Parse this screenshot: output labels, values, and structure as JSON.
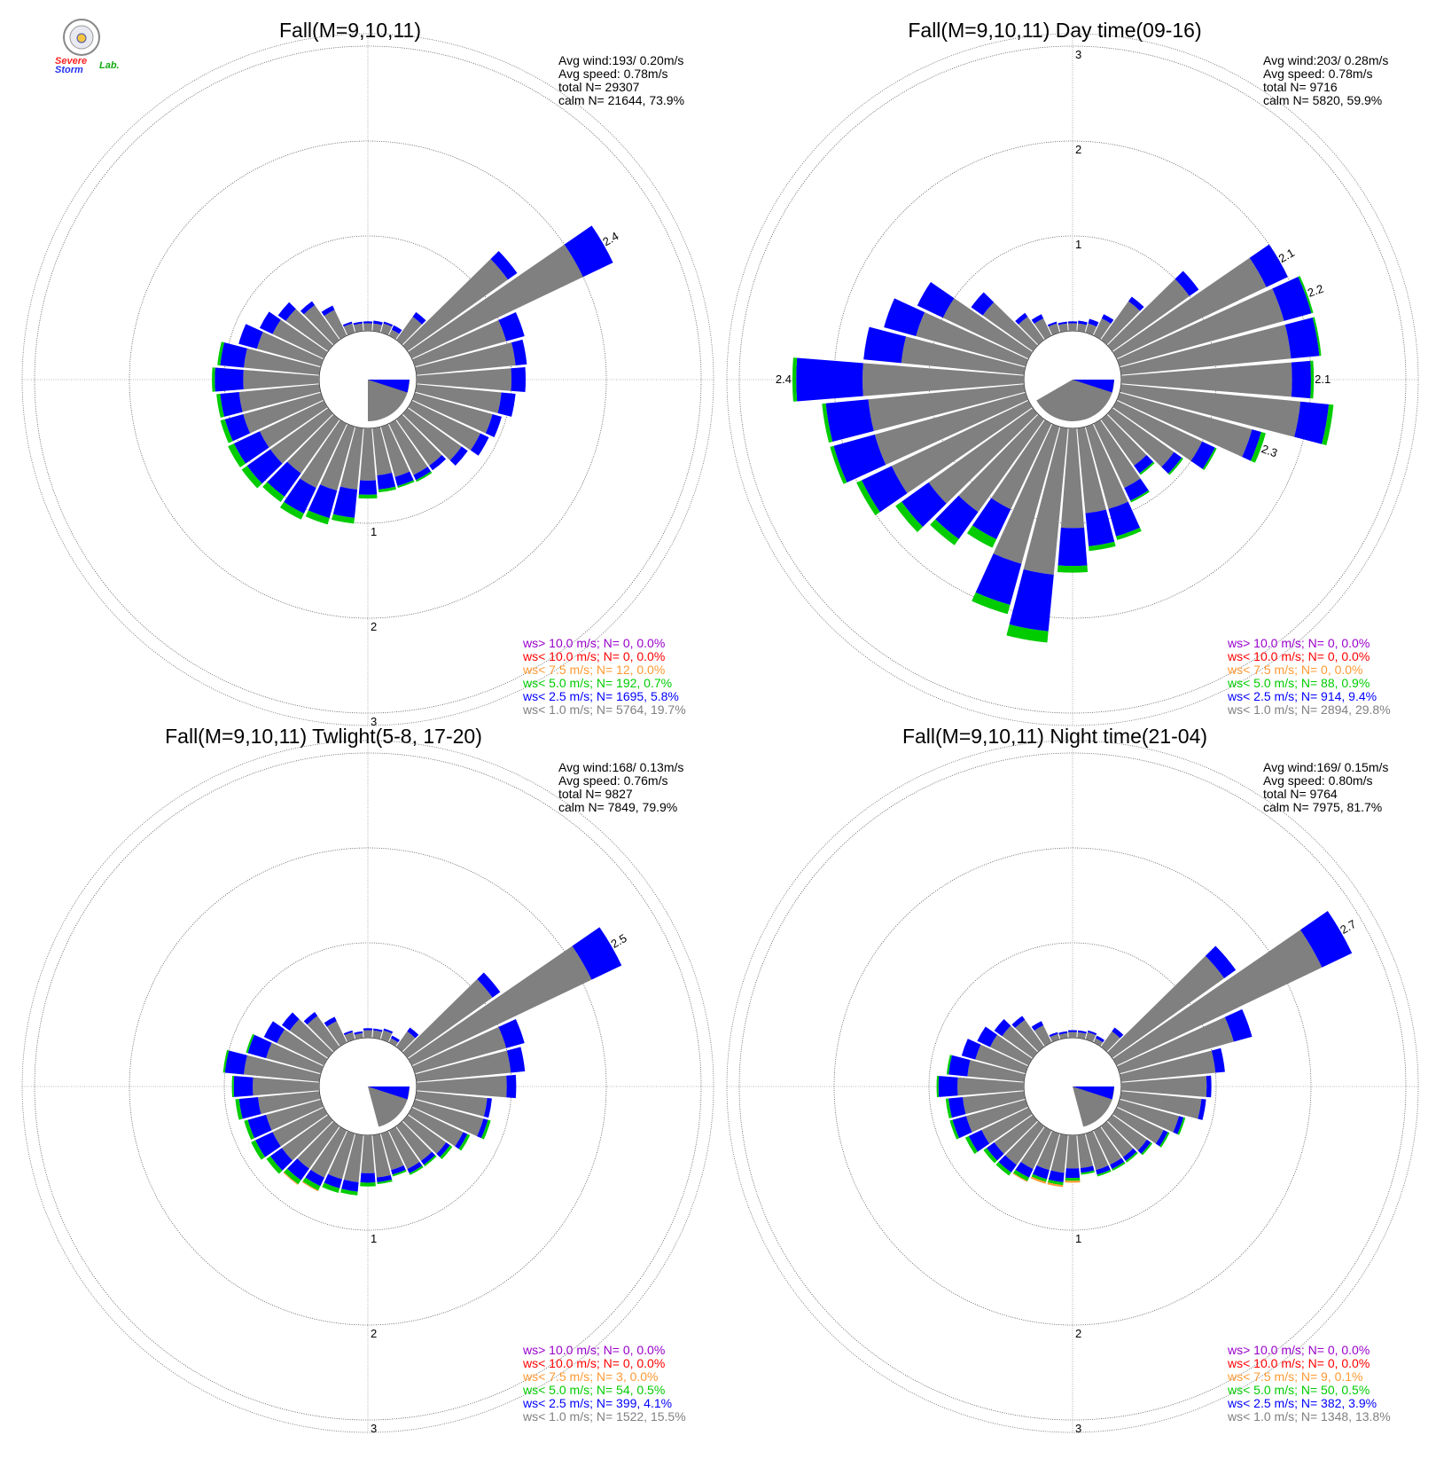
{
  "logo": {
    "text_severe": "Severe",
    "text_storm": "Storm",
    "text_lab": "Lab."
  },
  "colors": {
    "ws_gt_10": "#9900cc",
    "ws_lt_10": "#ff0000",
    "ws_lt_7_5": "#ff9933",
    "ws_lt_5": "#00cc00",
    "ws_lt_2_5": "#0000ff",
    "ws_lt_1": "#808080"
  },
  "chart_data": [
    {
      "type": "windrose",
      "title": "Fall(M=9,10,11)",
      "stats": {
        "avg_wind": "Avg wind:193/ 0.20m/s",
        "avg_speed": "Avg speed: 0.78m/s",
        "total": "total N=      29307",
        "calm": "calm N=  21644,  73.9%"
      },
      "rings": [
        1,
        2,
        3
      ],
      "ring_labels": [
        "1",
        "2",
        "3"
      ],
      "calm_pct": 73.9,
      "sectors_deg": [
        0,
        10,
        20,
        30,
        40,
        50,
        60,
        70,
        80,
        90,
        100,
        110,
        120,
        130,
        140,
        150,
        160,
        170,
        180,
        190,
        200,
        210,
        220,
        230,
        240,
        250,
        260,
        270,
        280,
        290,
        300,
        310,
        320,
        330,
        340,
        350
      ],
      "gray": [
        0.08,
        0.08,
        0.1,
        0.07,
        0.3,
        1.3,
        2.0,
        1.0,
        1.05,
        1.0,
        0.9,
        0.85,
        0.8,
        0.7,
        0.6,
        0.6,
        0.55,
        0.5,
        0.55,
        0.65,
        0.7,
        0.75,
        0.7,
        0.75,
        0.75,
        0.85,
        0.85,
        0.8,
        0.8,
        0.7,
        0.6,
        0.55,
        0.45,
        0.3,
        0.1,
        0.08
      ],
      "blue": [
        0.02,
        0.03,
        0.02,
        0.05,
        0.06,
        0.12,
        0.35,
        0.2,
        0.12,
        0.15,
        0.15,
        0.1,
        0.1,
        0.08,
        0.06,
        0.06,
        0.1,
        0.15,
        0.15,
        0.3,
        0.3,
        0.3,
        0.3,
        0.3,
        0.3,
        0.2,
        0.2,
        0.3,
        0.25,
        0.2,
        0.15,
        0.1,
        0.05,
        0.05,
        0.02,
        0.02
      ],
      "green": [
        0,
        0,
        0,
        0,
        0,
        0,
        0,
        0,
        0,
        0,
        0,
        0,
        0,
        0,
        0,
        0.02,
        0.02,
        0.03,
        0.04,
        0.06,
        0.07,
        0.07,
        0.07,
        0.07,
        0.07,
        0.05,
        0.04,
        0.03,
        0.03,
        0,
        0,
        0,
        0,
        0,
        0,
        0
      ],
      "orange": [
        0,
        0,
        0,
        0,
        0,
        0,
        0,
        0,
        0,
        0,
        0,
        0,
        0,
        0,
        0,
        0,
        0,
        0,
        0,
        0,
        0,
        0,
        0,
        0,
        0,
        0,
        0,
        0,
        0,
        0,
        0,
        0,
        0,
        0,
        0,
        0
      ],
      "calm_wedge": {
        "from_deg": 90,
        "to_deg": 180
      },
      "max_label": {
        "text": "2.4",
        "sector_deg": 60
      },
      "extra_labels": [],
      "legend": [
        {
          "text": "ws> 10.0 m/s; N=     0,  0.0%",
          "color": "ws_gt_10"
        },
        {
          "text": "ws< 10.0 m/s; N=     0,  0.0%",
          "color": "ws_lt_10"
        },
        {
          "text": "ws<  7.5 m/s; N=    12,  0.0%",
          "color": "ws_lt_7_5"
        },
        {
          "text": "ws<  5.0 m/s; N=   192,  0.7%",
          "color": "ws_lt_5"
        },
        {
          "text": "ws<  2.5 m/s; N=  1695,  5.8%",
          "color": "ws_lt_2_5"
        },
        {
          "text": "ws<  1.0 m/s; N=  5764, 19.7%",
          "color": "ws_lt_1"
        }
      ]
    },
    {
      "type": "windrose",
      "title": "Fall(M=9,10,11) Day time(09-16)",
      "stats": {
        "avg_wind": "Avg wind:203/ 0.28m/s",
        "avg_speed": "Avg speed: 0.78m/s",
        "total": "total N=        9716",
        "calm": "calm N=   5820,  59.9%"
      },
      "rings": [
        1,
        2,
        3
      ],
      "ring_labels": [
        "1",
        "2",
        "3"
      ],
      "calm_pct": 59.9,
      "sectors_deg": [
        0,
        10,
        20,
        30,
        40,
        50,
        60,
        70,
        80,
        90,
        100,
        110,
        120,
        130,
        140,
        150,
        160,
        170,
        180,
        190,
        200,
        210,
        220,
        230,
        240,
        250,
        260,
        270,
        280,
        290,
        300,
        310,
        320,
        330,
        340,
        350
      ],
      "gray": [
        0.08,
        0.08,
        0.1,
        0.2,
        0.5,
        1.0,
        1.75,
        1.8,
        1.8,
        1.8,
        1.9,
        1.45,
        1.0,
        0.8,
        0.6,
        0.75,
        0.9,
        0.9,
        1.05,
        1.55,
        1.5,
        1.0,
        1.2,
        1.35,
        1.6,
        1.65,
        1.65,
        1.7,
        1.3,
        1.2,
        1.0,
        0.65,
        0.3,
        0.2,
        0.1,
        0.08
      ],
      "blue": [
        0.02,
        0.03,
        0.05,
        0.05,
        0.06,
        0.12,
        0.25,
        0.3,
        0.3,
        0.2,
        0.3,
        0.1,
        0.15,
        0.1,
        0.1,
        0.15,
        0.3,
        0.35,
        0.4,
        0.6,
        0.45,
        0.35,
        0.35,
        0.35,
        0.35,
        0.45,
        0.45,
        0.7,
        0.4,
        0.35,
        0.3,
        0.15,
        0.05,
        0.05,
        0.02,
        0.02
      ],
      "green": [
        0,
        0,
        0,
        0,
        0,
        0,
        0,
        0.02,
        0.02,
        0.03,
        0.05,
        0.05,
        0.02,
        0.02,
        0.02,
        0.02,
        0.04,
        0.05,
        0.07,
        0.12,
        0.1,
        0.1,
        0.08,
        0.08,
        0.06,
        0.04,
        0.04,
        0.04,
        0,
        0,
        0,
        0,
        0,
        0,
        0,
        0
      ],
      "orange": [
        0,
        0,
        0,
        0,
        0,
        0,
        0,
        0,
        0,
        0,
        0,
        0,
        0,
        0,
        0,
        0,
        0,
        0,
        0,
        0,
        0,
        0,
        0,
        0,
        0,
        0,
        0,
        0,
        0,
        0,
        0,
        0,
        0,
        0,
        0,
        0
      ],
      "calm_wedge": {
        "from_deg": 90,
        "to_deg": 240
      },
      "max_label": {
        "text": "2.4",
        "sector_deg": 270
      },
      "extra_labels": [
        {
          "text": "2.1",
          "sector_deg": 60
        },
        {
          "text": "2.2",
          "sector_deg": 70
        },
        {
          "text": "2.1",
          "sector_deg": 90
        },
        {
          "text": "2.3",
          "sector_deg": 110
        }
      ],
      "legend": [
        {
          "text": "ws> 10.0 m/s; N=     0,  0.0%",
          "color": "ws_gt_10"
        },
        {
          "text": "ws< 10.0 m/s; N=     0,  0.0%",
          "color": "ws_lt_10"
        },
        {
          "text": "ws<  7.5 m/s; N=     0,  0.0%",
          "color": "ws_lt_7_5"
        },
        {
          "text": "ws<  5.0 m/s; N=    88,  0.9%",
          "color": "ws_lt_5"
        },
        {
          "text": "ws<  2.5 m/s; N=   914,  9.4%",
          "color": "ws_lt_2_5"
        },
        {
          "text": "ws<  1.0 m/s; N=  2894, 29.8%",
          "color": "ws_lt_1"
        }
      ]
    },
    {
      "type": "windrose",
      "title": "Fall(M=9,10,11) Twlight(5-8, 17-20)",
      "stats": {
        "avg_wind": "Avg wind:168/ 0.13m/s",
        "avg_speed": "Avg speed: 0.76m/s",
        "total": "total N=        9827",
        "calm": "calm N=   7849,  79.9%"
      },
      "rings": [
        1,
        2,
        3
      ],
      "ring_labels": [
        "1",
        "2",
        "3"
      ],
      "calm_pct": 79.9,
      "sectors_deg": [
        0,
        10,
        20,
        30,
        40,
        50,
        60,
        70,
        80,
        90,
        100,
        110,
        120,
        130,
        140,
        150,
        160,
        170,
        180,
        190,
        200,
        210,
        220,
        230,
        240,
        250,
        260,
        270,
        280,
        290,
        300,
        310,
        320,
        330,
        340,
        350
      ],
      "gray": [
        0.08,
        0.08,
        0.1,
        0.05,
        0.2,
        1.1,
        2.1,
        1.0,
        1.0,
        0.95,
        0.75,
        0.75,
        0.6,
        0.5,
        0.45,
        0.45,
        0.4,
        0.45,
        0.4,
        0.5,
        0.5,
        0.55,
        0.55,
        0.6,
        0.6,
        0.6,
        0.65,
        0.7,
        0.8,
        0.6,
        0.55,
        0.5,
        0.4,
        0.25,
        0.08,
        0.05
      ],
      "blue": [
        0.02,
        0.02,
        0.02,
        0.03,
        0.05,
        0.1,
        0.35,
        0.2,
        0.15,
        0.1,
        0.05,
        0.05,
        0.05,
        0.05,
        0.05,
        0.05,
        0.05,
        0.05,
        0.1,
        0.1,
        0.1,
        0.1,
        0.15,
        0.15,
        0.2,
        0.2,
        0.2,
        0.2,
        0.2,
        0.2,
        0.15,
        0.1,
        0.05,
        0.05,
        0.02,
        0.02
      ],
      "green": [
        0,
        0,
        0,
        0,
        0,
        0,
        0,
        0,
        0,
        0,
        0,
        0.03,
        0.03,
        0.03,
        0.02,
        0.02,
        0.02,
        0.02,
        0.04,
        0.04,
        0.05,
        0.05,
        0.05,
        0.05,
        0.05,
        0.04,
        0.04,
        0.02,
        0.02,
        0.02,
        0,
        0,
        0,
        0,
        0,
        0
      ],
      "orange": [
        0,
        0,
        0,
        0,
        0,
        0,
        0,
        0,
        0,
        0,
        0,
        0,
        0,
        0,
        0,
        0,
        0,
        0,
        0,
        0,
        0,
        0.01,
        0.01,
        0,
        0,
        0,
        0,
        0,
        0,
        0,
        0,
        0,
        0,
        0,
        0,
        0
      ],
      "calm_wedge": {
        "from_deg": 90,
        "to_deg": 165
      },
      "max_label": {
        "text": "2.5",
        "sector_deg": 60
      },
      "extra_labels": [],
      "legend": [
        {
          "text": "ws> 10.0 m/s; N=     0,  0.0%",
          "color": "ws_gt_10"
        },
        {
          "text": "ws< 10.0 m/s; N=     0,  0.0%",
          "color": "ws_lt_10"
        },
        {
          "text": "ws<  7.5 m/s; N=     3,  0.0%",
          "color": "ws_lt_7_5"
        },
        {
          "text": "ws<  5.0 m/s; N=    54,  0.5%",
          "color": "ws_lt_5"
        },
        {
          "text": "ws<  2.5 m/s; N=   399,  4.1%",
          "color": "ws_lt_2_5"
        },
        {
          "text": "ws<  1.0 m/s; N=  1522, 15.5%",
          "color": "ws_lt_1"
        }
      ]
    },
    {
      "type": "windrose",
      "title": "Fall(M=9,10,11) Night time(21-04)",
      "stats": {
        "avg_wind": "Avg wind:169/ 0.15m/s",
        "avg_speed": "Avg speed: 0.80m/s",
        "total": "total N=        9764",
        "calm": "calm N=   7975,  81.7%"
      },
      "rings": [
        1,
        2,
        3
      ],
      "ring_labels": [
        "1",
        "2",
        "3"
      ],
      "calm_pct": 81.7,
      "sectors_deg": [
        0,
        10,
        20,
        30,
        40,
        50,
        60,
        70,
        80,
        90,
        100,
        110,
        120,
        130,
        140,
        150,
        160,
        170,
        180,
        190,
        200,
        210,
        220,
        230,
        240,
        250,
        260,
        270,
        280,
        290,
        300,
        310,
        320,
        330,
        340,
        350
      ],
      "gray": [
        0.06,
        0.06,
        0.08,
        0.05,
        0.2,
        1.45,
        2.4,
        1.25,
        1.0,
        0.9,
        0.85,
        0.65,
        0.55,
        0.45,
        0.4,
        0.4,
        0.4,
        0.35,
        0.35,
        0.4,
        0.4,
        0.45,
        0.5,
        0.5,
        0.55,
        0.65,
        0.65,
        0.7,
        0.6,
        0.55,
        0.45,
        0.4,
        0.35,
        0.2,
        0.06,
        0.05
      ],
      "blue": [
        0.02,
        0.02,
        0.02,
        0.03,
        0.05,
        0.15,
        0.35,
        0.2,
        0.1,
        0.05,
        0.05,
        0.05,
        0.05,
        0.05,
        0.05,
        0.05,
        0.05,
        0.05,
        0.1,
        0.1,
        0.1,
        0.1,
        0.1,
        0.1,
        0.15,
        0.15,
        0.15,
        0.2,
        0.2,
        0.15,
        0.15,
        0.1,
        0.05,
        0.05,
        0.02,
        0.02
      ],
      "green": [
        0,
        0,
        0,
        0,
        0,
        0,
        0,
        0,
        0,
        0,
        0,
        0.02,
        0.02,
        0.02,
        0.02,
        0.02,
        0.02,
        0.02,
        0.03,
        0.03,
        0.03,
        0.04,
        0.04,
        0.04,
        0.04,
        0.03,
        0.03,
        0.02,
        0.02,
        0,
        0,
        0,
        0,
        0,
        0,
        0
      ],
      "orange": [
        0,
        0,
        0,
        0,
        0,
        0,
        0,
        0,
        0,
        0,
        0,
        0,
        0,
        0,
        0,
        0,
        0,
        0,
        0.02,
        0.02,
        0.02,
        0.01,
        0,
        0,
        0,
        0,
        0,
        0,
        0,
        0,
        0,
        0,
        0,
        0,
        0,
        0
      ],
      "calm_wedge": {
        "from_deg": 90,
        "to_deg": 165
      },
      "max_label": {
        "text": "2.7",
        "sector_deg": 60
      },
      "extra_labels": [],
      "legend": [
        {
          "text": "ws> 10.0 m/s; N=     0,  0.0%",
          "color": "ws_gt_10"
        },
        {
          "text": "ws< 10.0 m/s; N=     0,  0.0%",
          "color": "ws_lt_10"
        },
        {
          "text": "ws<  7.5 m/s; N=     9,  0.1%",
          "color": "ws_lt_7_5"
        },
        {
          "text": "ws<  5.0 m/s; N=    50,  0.5%",
          "color": "ws_lt_5"
        },
        {
          "text": "ws<  2.5 m/s; N=   382,  3.9%",
          "color": "ws_lt_2_5"
        },
        {
          "text": "ws<  1.0 m/s; N=  1348, 13.8%",
          "color": "ws_lt_1"
        }
      ]
    }
  ]
}
